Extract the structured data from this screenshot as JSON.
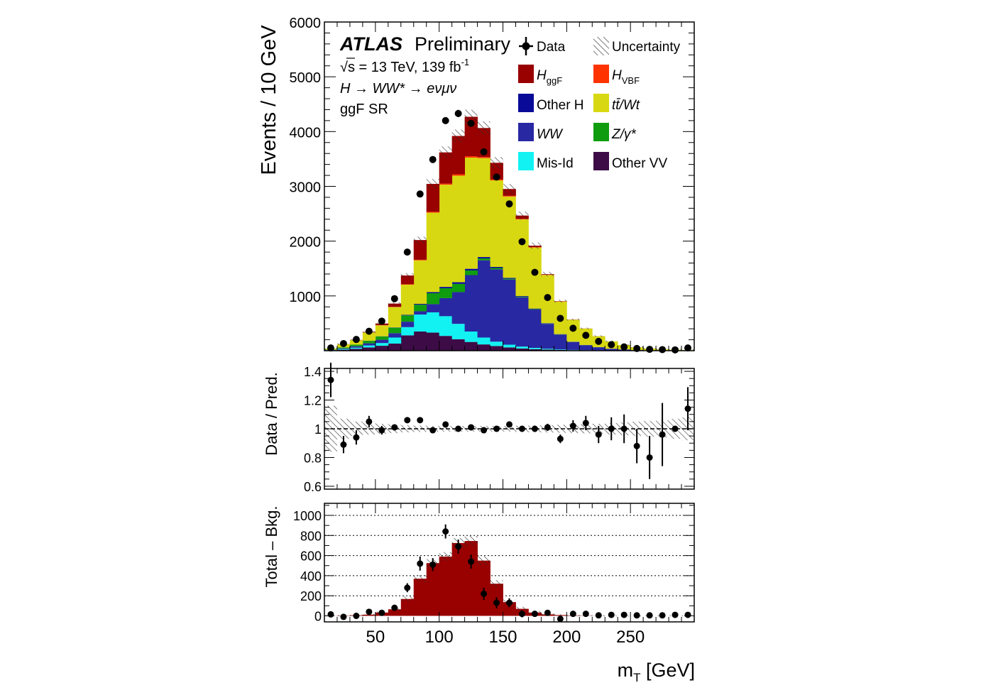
{
  "figure": {
    "atlas_bold": "ATLAS",
    "atlas_rest": "Preliminary",
    "energy_lumi": "√s = 13 TeV, 139 fb",
    "lumi_exp": "-1",
    "process": "H → WW* → eνμν",
    "region": "ggF SR",
    "xlabel": "m",
    "xlabel_sub": "T",
    "xlabel_unit": " [GeV]"
  },
  "legend": [
    {
      "name": "Data",
      "color": "#000000",
      "kind": "marker"
    },
    {
      "name": "Uncertainty",
      "color": "#555555",
      "kind": "hatch"
    },
    {
      "name": "H",
      "sub": "ggF",
      "color": "#990000",
      "kind": "fill"
    },
    {
      "name": "H",
      "sub": "VBF",
      "color": "#ff3300",
      "kind": "fill"
    },
    {
      "name": "Other H",
      "color": "#0a0a99",
      "kind": "fill"
    },
    {
      "name": "tt̄/Wt",
      "color": "#d8d812",
      "kind": "fill"
    },
    {
      "name": "WW",
      "color": "#2828a3",
      "kind": "fill"
    },
    {
      "name": "Z/γ*",
      "color": "#0f9c0f",
      "kind": "fill"
    },
    {
      "name": "Mis-Id",
      "color": "#12f2f2",
      "kind": "fill"
    },
    {
      "name": "Other VV",
      "color": "#3d0c47",
      "kind": "fill"
    }
  ],
  "chart_data": [
    {
      "type": "bar",
      "stacked": true,
      "ylabel": "Events / 10 GeV",
      "ylim": [
        0,
        6000
      ],
      "yticks": [
        1000,
        2000,
        3000,
        4000,
        5000,
        6000
      ],
      "xlim": [
        10,
        300
      ],
      "bin_edges": [
        10,
        20,
        30,
        40,
        50,
        60,
        70,
        80,
        90,
        100,
        110,
        120,
        130,
        140,
        150,
        160,
        170,
        180,
        190,
        200,
        210,
        220,
        230,
        240,
        250,
        260,
        270,
        280,
        290,
        300
      ],
      "series": [
        {
          "name": "Other VV",
          "color": "#3d0c47",
          "values": [
            5,
            18,
            35,
            60,
            90,
            130,
            280,
            350,
            330,
            270,
            210,
            160,
            115,
            85,
            60,
            40,
            28,
            20,
            13,
            8,
            5,
            4,
            3,
            2,
            1,
            1,
            0,
            0,
            0
          ]
        },
        {
          "name": "Mis-Id",
          "color": "#12f2f2",
          "values": [
            5,
            12,
            20,
            35,
            50,
            110,
            150,
            310,
            370,
            360,
            280,
            190,
            125,
            80,
            50,
            35,
            23,
            15,
            9,
            6,
            4,
            3,
            2,
            1,
            1,
            1,
            0,
            0,
            0
          ]
        },
        {
          "name": "WW",
          "color": "#2828a3",
          "values": [
            4,
            12,
            25,
            40,
            60,
            80,
            100,
            60,
            150,
            330,
            580,
            1030,
            1410,
            1320,
            1190,
            900,
            700,
            455,
            270,
            145,
            90,
            55,
            30,
            20,
            10,
            6,
            4,
            3,
            2
          ]
        },
        {
          "name": "Z/γ*",
          "color": "#0f9c0f",
          "values": [
            8,
            18,
            30,
            45,
            60,
            100,
            115,
            120,
            200,
            180,
            150,
            85,
            35,
            25,
            15,
            10,
            8,
            5,
            4,
            2,
            2,
            1,
            0,
            0,
            0,
            0,
            0,
            0,
            0
          ]
        },
        {
          "name": "Other H",
          "color": "#0a0a99",
          "values": [
            0,
            1,
            1,
            2,
            3,
            5,
            10,
            15,
            20,
            25,
            30,
            30,
            25,
            20,
            15,
            12,
            10,
            8,
            6,
            4,
            3,
            2,
            1,
            1,
            0,
            0,
            0,
            0,
            0
          ]
        },
        {
          "name": "tt̄/Wt",
          "color": "#d8d812",
          "values": [
            15,
            55,
            80,
            150,
            200,
            370,
            550,
            795,
            1450,
            1865,
            1945,
            2030,
            1805,
            1580,
            1485,
            1400,
            1115,
            880,
            595,
            400,
            300,
            200,
            135,
            80,
            50,
            30,
            20,
            15,
            10
          ]
        },
        {
          "name": "H_VBF",
          "color": "#ff3300",
          "values": [
            0,
            1,
            1,
            2,
            3,
            5,
            8,
            10,
            15,
            20,
            25,
            25,
            20,
            15,
            12,
            10,
            8,
            5,
            3,
            2,
            1,
            1,
            0,
            0,
            0,
            0,
            0,
            0,
            0
          ]
        },
        {
          "name": "H_ggF",
          "color": "#990000",
          "values": [
            1,
            2,
            5,
            10,
            30,
            60,
            160,
            360,
            510,
            570,
            700,
            720,
            530,
            305,
            125,
            60,
            25,
            10,
            5,
            2,
            1,
            0,
            0,
            0,
            0,
            0,
            0,
            0,
            0
          ]
        }
      ],
      "data_x": [
        15,
        25,
        35,
        45,
        55,
        65,
        75,
        85,
        95,
        105,
        115,
        125,
        135,
        145,
        155,
        165,
        175,
        185,
        195,
        205,
        215,
        225,
        235,
        245,
        255,
        265,
        275,
        285,
        295
      ],
      "data_y": [
        50,
        130,
        205,
        355,
        540,
        950,
        1800,
        2860,
        3490,
        4200,
        4330,
        4150,
        3630,
        3170,
        2680,
        1990,
        1430,
        970,
        590,
        410,
        280,
        170,
        110,
        70,
        40,
        25,
        20,
        15,
        50
      ]
    },
    {
      "type": "scatter",
      "ylabel": "Data / Pred.",
      "ylim": [
        0.58,
        1.42
      ],
      "yticks": [
        0.6,
        0.8,
        1,
        1.2,
        1.4
      ],
      "ytick_labels": [
        "0.6",
        "0.8",
        "1",
        "1.2",
        "1.4"
      ],
      "xlim": [
        10,
        300
      ],
      "x": [
        15,
        25,
        35,
        45,
        55,
        65,
        75,
        85,
        95,
        105,
        115,
        125,
        135,
        145,
        155,
        165,
        175,
        185,
        195,
        205,
        215,
        225,
        235,
        245,
        255,
        265,
        275,
        285,
        295
      ],
      "y": [
        1.34,
        0.89,
        0.94,
        1.05,
        0.99,
        1.01,
        1.06,
        1.06,
        0.99,
        1.03,
        1.0,
        1.01,
        0.99,
        1.0,
        1.03,
        1.0,
        1.0,
        1.01,
        0.93,
        1.02,
        1.04,
        0.96,
        1.0,
        1.0,
        0.88,
        0.8,
        0.96,
        1.0,
        1.14
      ],
      "yerr": [
        0.12,
        0.06,
        0.05,
        0.04,
        0.03,
        0.02,
        0.02,
        0.015,
        0.012,
        0.012,
        0.012,
        0.012,
        0.012,
        0.012,
        0.015,
        0.018,
        0.02,
        0.025,
        0.03,
        0.04,
        0.05,
        0.06,
        0.08,
        0.1,
        0.12,
        0.15,
        0.22,
        0.0,
        0.15
      ],
      "band": [
        0.16,
        0.07,
        0.05,
        0.04,
        0.035,
        0.03,
        0.025,
        0.022,
        0.02,
        0.02,
        0.02,
        0.02,
        0.02,
        0.02,
        0.02,
        0.022,
        0.024,
        0.026,
        0.028,
        0.03,
        0.032,
        0.035,
        0.04,
        0.045,
        0.05,
        0.055,
        0.06,
        0.07,
        0.08
      ]
    },
    {
      "type": "bar",
      "ylabel": "Total – Bkg.",
      "ylim": [
        -60,
        1120
      ],
      "yticks": [
        0,
        200,
        400,
        600,
        800,
        1000
      ],
      "xlim": [
        10,
        300
      ],
      "xticks": [
        50,
        100,
        150,
        200,
        250
      ],
      "grid": true,
      "bin_edges": [
        10,
        20,
        30,
        40,
        50,
        60,
        70,
        80,
        90,
        100,
        110,
        120,
        130,
        140,
        150,
        160,
        170,
        180,
        190,
        200,
        210,
        220,
        230,
        240,
        250,
        260,
        270,
        280,
        290,
        300
      ],
      "values": [
        1,
        3,
        6,
        12,
        33,
        65,
        168,
        370,
        525,
        590,
        725,
        745,
        550,
        320,
        137,
        70,
        33,
        15,
        8,
        4,
        2,
        1,
        0,
        0,
        0,
        0,
        0,
        0,
        0
      ],
      "band": [
        5,
        5,
        6,
        8,
        10,
        14,
        25,
        35,
        40,
        45,
        50,
        50,
        45,
        35,
        25,
        20,
        15,
        10,
        8,
        6,
        5,
        5,
        5,
        5,
        5,
        5,
        5,
        5,
        5
      ],
      "data_x": [
        15,
        25,
        35,
        45,
        55,
        65,
        75,
        85,
        95,
        105,
        115,
        125,
        135,
        145,
        155,
        165,
        175,
        185,
        195,
        205,
        215,
        225,
        235,
        245,
        255,
        265,
        275,
        285,
        295
      ],
      "data_y": [
        15,
        -10,
        0,
        40,
        30,
        80,
        280,
        520,
        510,
        840,
        690,
        540,
        220,
        130,
        130,
        20,
        20,
        30,
        -30,
        20,
        20,
        5,
        10,
        10,
        5,
        5,
        5,
        10,
        10
      ],
      "yerr": [
        10,
        10,
        12,
        15,
        20,
        25,
        45,
        70,
        65,
        70,
        70,
        70,
        60,
        55,
        45,
        35,
        30,
        25,
        20,
        18,
        15,
        12,
        12,
        10,
        10,
        10,
        10,
        10,
        10
      ]
    }
  ]
}
